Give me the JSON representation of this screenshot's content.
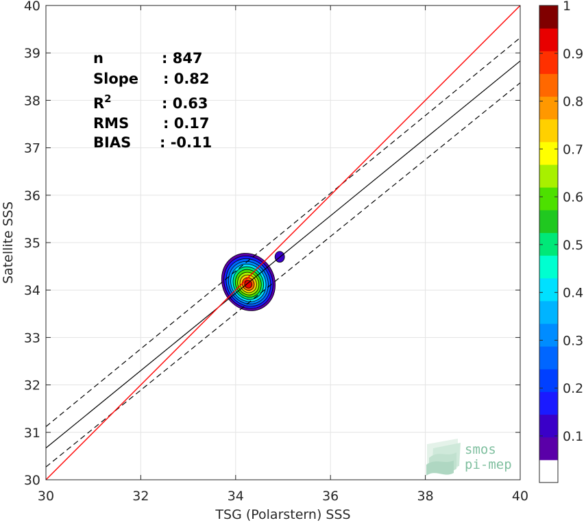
{
  "chart_data": {
    "type": "contour-scatter",
    "xlabel": "TSG (Polarstern) SSS",
    "ylabel": "Satellite SSS",
    "xlim": [
      30,
      40
    ],
    "ylim": [
      30,
      40
    ],
    "x_ticks": [
      "30",
      "32",
      "34",
      "36",
      "38",
      "40"
    ],
    "y_ticks": [
      "30",
      "31",
      "32",
      "33",
      "34",
      "35",
      "36",
      "37",
      "38",
      "39",
      "40"
    ],
    "grid": true,
    "stats": [
      {
        "label": "n",
        "value": ": 847"
      },
      {
        "label": "Slope",
        "value": ": 0.82"
      },
      {
        "label": "R",
        "sup": "2",
        "value": ": 0.63"
      },
      {
        "label": "RMS",
        "value": ": 0.17"
      },
      {
        "label": "BIAS",
        "value": ": -0.11"
      }
    ],
    "identity_line": {
      "color": "#ff0000",
      "from": [
        30,
        30
      ],
      "to": [
        40,
        40
      ]
    },
    "fit_line": {
      "from": [
        30,
        30.67
      ],
      "to": [
        40,
        38.83
      ]
    },
    "fit_band_upper": {
      "from": [
        30,
        31.12
      ],
      "to": [
        40,
        39.32
      ]
    },
    "fit_band_lower": {
      "from": [
        30,
        30.27
      ],
      "to": [
        40,
        38.37
      ]
    },
    "density_peak": {
      "x": 34.27,
      "y": 34.17
    },
    "secondary_blob": {
      "x": 34.93,
      "y": 34.7
    },
    "colorbar": {
      "range": [
        0,
        1
      ],
      "tick_labels": [
        "0.1",
        "0.2",
        "0.3",
        "0.4",
        "0.5",
        "0.6",
        "0.7",
        "0.8",
        "0.9",
        "1"
      ],
      "tick_values": [
        0.1,
        0.2,
        0.3,
        0.4,
        0.5,
        0.6,
        0.7,
        0.8,
        0.9,
        1.0
      ],
      "levels": [
        0.05,
        0.1,
        0.15,
        0.2,
        0.25,
        0.3,
        0.35,
        0.4,
        0.45,
        0.5,
        0.55,
        0.6,
        0.65,
        0.7,
        0.75,
        0.8,
        0.85,
        0.9,
        0.95,
        1.0
      ],
      "colors": [
        "#ffffff",
        "#5a00a8",
        "#3a00c8",
        "#1a1aff",
        "#0040ff",
        "#0066ff",
        "#008cff",
        "#00b4ff",
        "#00e0ff",
        "#00ffd0",
        "#00e878",
        "#20c820",
        "#4de000",
        "#a8f000",
        "#ffff00",
        "#ffd000",
        "#ff9800",
        "#ff6800",
        "#ff3000",
        "#e80000",
        "#800000"
      ]
    },
    "watermark": {
      "line1": "smos",
      "line2": "pi-mep"
    }
  }
}
